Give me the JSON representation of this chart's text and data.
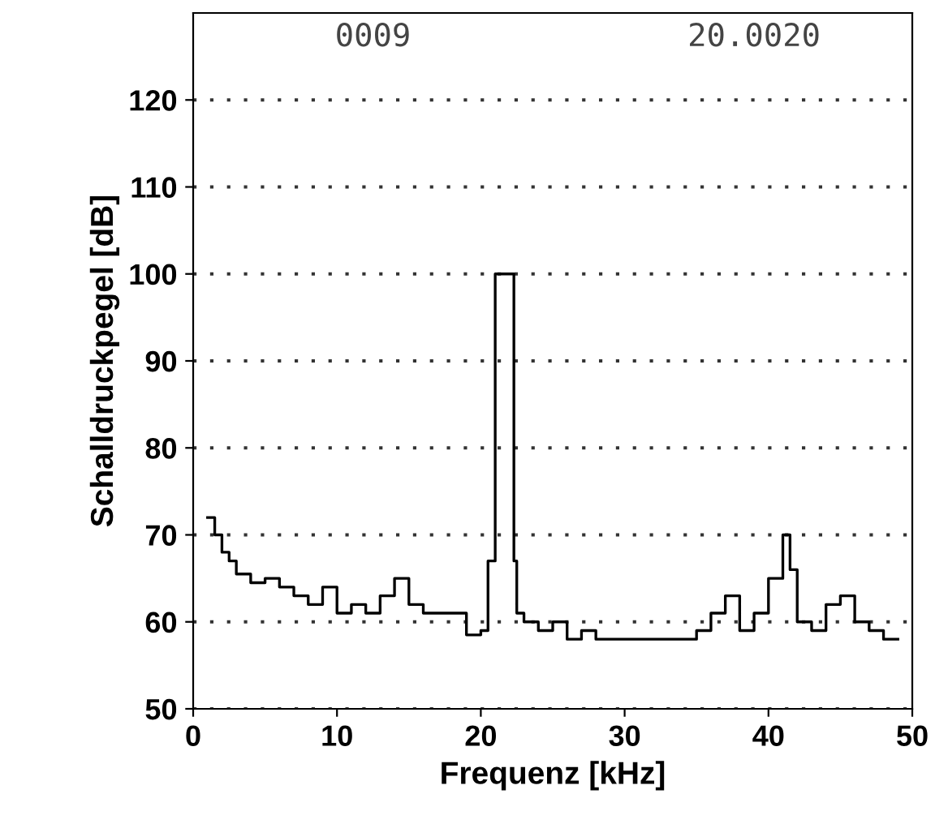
{
  "chart_data": {
    "type": "step",
    "xlabel": "Frequenz [kHz]",
    "ylabel": "Schalldruckpegel [dB]",
    "annotations": [
      "0009",
      "20.0020"
    ],
    "series": [
      {
        "color": "#000000",
        "x": [
          1.0,
          1.5,
          2.0,
          2.5,
          3.0,
          4.0,
          5.0,
          6.0,
          7.0,
          8.0,
          9.0,
          10,
          11,
          12,
          13,
          14,
          15,
          16,
          17,
          18,
          19,
          20,
          20.5,
          21,
          21.5,
          22,
          22.3,
          22.5,
          23,
          24,
          25,
          26,
          27,
          28,
          29,
          30,
          32,
          35,
          36,
          37,
          38,
          39,
          40,
          41,
          41.5,
          42,
          43,
          44,
          45,
          46,
          47,
          48,
          49
        ],
        "values": [
          72,
          70,
          68,
          67,
          65.5,
          64.5,
          65,
          64,
          63,
          62,
          64,
          61,
          62,
          61,
          63,
          65,
          62,
          61,
          61,
          61,
          58.5,
          59,
          67,
          100,
          100,
          100,
          67,
          61,
          60,
          59,
          60,
          58,
          59,
          58,
          58,
          58,
          58,
          59,
          61,
          63,
          59,
          61,
          65,
          70,
          66,
          60,
          59,
          62,
          63,
          60,
          59,
          58,
          58
        ]
      }
    ],
    "xlim": [
      0,
      50
    ],
    "xticks": [
      0,
      10,
      20,
      30,
      40,
      50
    ],
    "ylim": [
      50,
      130
    ],
    "yticks": [
      50,
      60,
      70,
      80,
      90,
      100,
      110,
      120
    ],
    "grid": "y",
    "line_style": "solid"
  }
}
